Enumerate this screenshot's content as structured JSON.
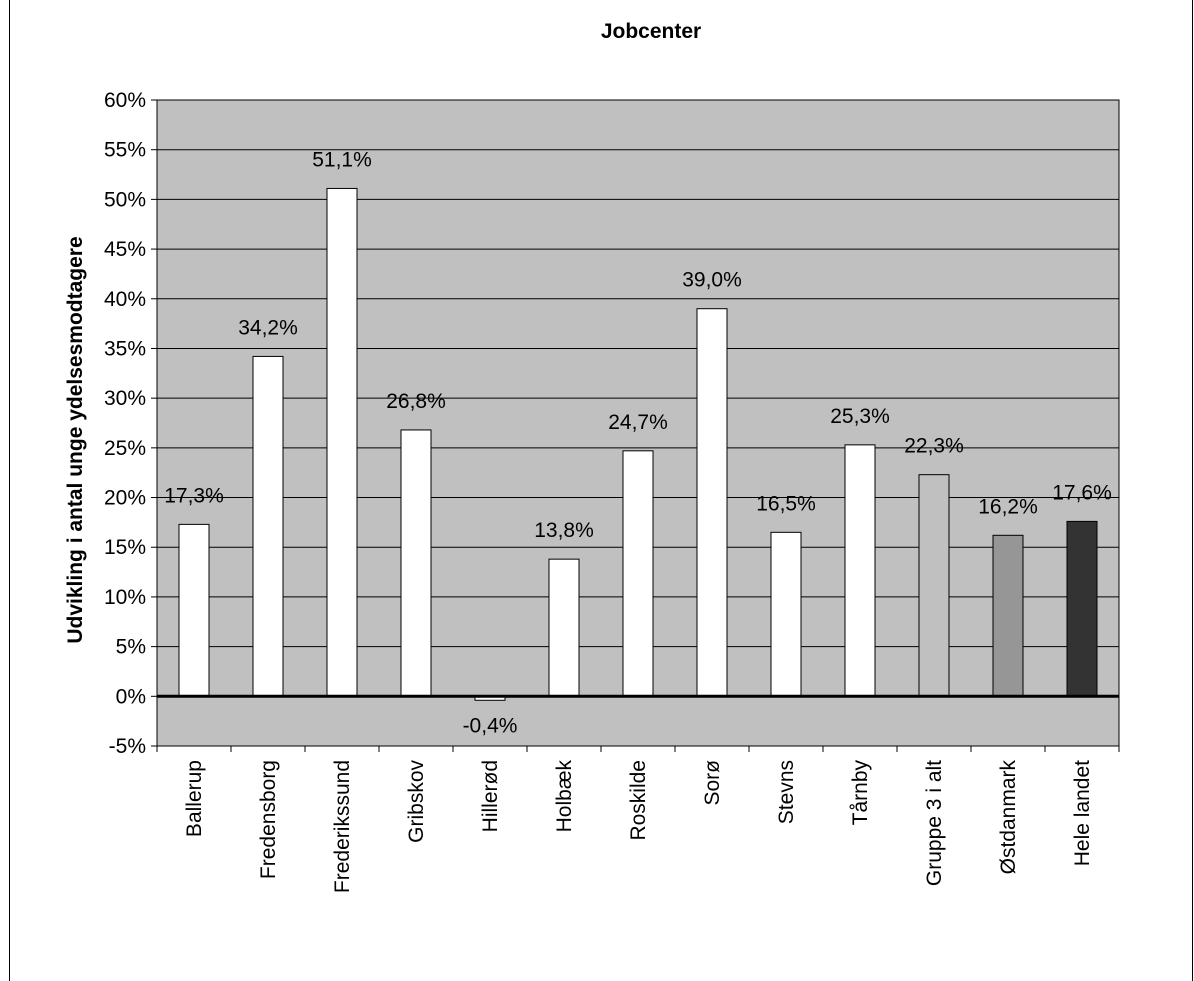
{
  "chart_data": {
    "type": "bar",
    "title": "Jobcenter",
    "xlabel": "",
    "ylabel": "Udvikling i antal unge ydelsesmodtagere",
    "ylim": [
      -0.05,
      0.6
    ],
    "y_ticks": [
      "-5%",
      "0%",
      "5%",
      "10%",
      "15%",
      "20%",
      "25%",
      "30%",
      "35%",
      "40%",
      "45%",
      "50%",
      "55%",
      "60%"
    ],
    "grid": true,
    "legend": "none",
    "plot_background": "#c0c0c0",
    "categories": [
      "Ballerup",
      "Fredensborg",
      "Frederikssund",
      "Gribskov",
      "Hillerød",
      "Holbæk",
      "Roskilde",
      "Sorø",
      "Stevns",
      "Tårnby",
      "Gruppe 3 i alt",
      "Østdanmark",
      "Hele landet"
    ],
    "values": [
      0.173,
      0.342,
      0.511,
      0.268,
      -0.004,
      0.138,
      0.247,
      0.39,
      0.165,
      0.253,
      0.223,
      0.162,
      0.176
    ],
    "data_labels": [
      "17,3%",
      "34,2%",
      "51,1%",
      "26,8%",
      "-0,4%",
      "13,8%",
      "24,7%",
      "39,0%",
      "16,5%",
      "25,3%",
      "22,3%",
      "16,2%",
      "17,6%"
    ],
    "bar_colors": [
      "#ffffff",
      "#ffffff",
      "#ffffff",
      "#ffffff",
      "#ffffff",
      "#ffffff",
      "#ffffff",
      "#ffffff",
      "#ffffff",
      "#ffffff",
      "#c0c0c0",
      "#969696",
      "#333333"
    ]
  }
}
